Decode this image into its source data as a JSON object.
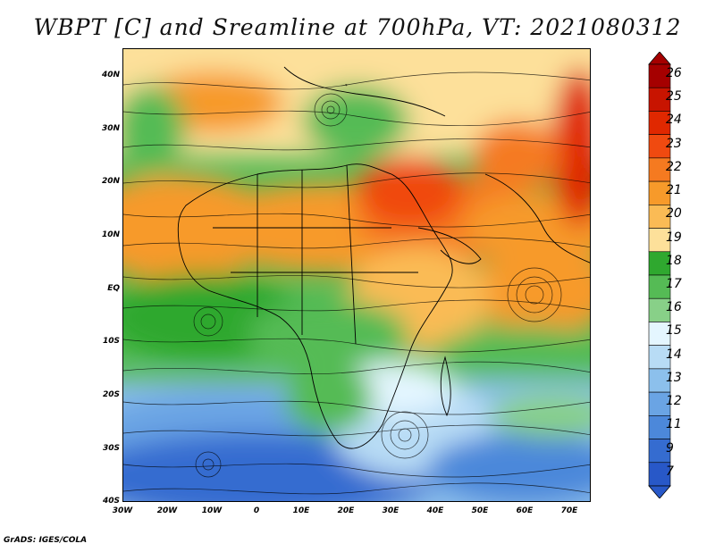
{
  "title": "WBPT [C] and Sreamline at 700hPa, VT: 2021080312",
  "credit": "GrADS: IGES/COLA",
  "map": {
    "lat_labels": [
      "40N",
      "30N",
      "20N",
      "10N",
      "EQ",
      "10S",
      "20S",
      "30S",
      "40S"
    ],
    "lon_labels": [
      "30W",
      "20W",
      "10W",
      "0",
      "10E",
      "20E",
      "30E",
      "40E",
      "50E",
      "60E",
      "70E"
    ],
    "lat_range": [
      -40,
      45
    ],
    "lon_range": [
      -30,
      75
    ]
  },
  "colorbar": {
    "levels": [
      "26",
      "25",
      "24",
      "23",
      "22",
      "21",
      "20",
      "19",
      "18",
      "17",
      "16",
      "15",
      "14",
      "13",
      "12",
      "11",
      "9",
      "7"
    ],
    "colors": [
      "#a50000",
      "#c81400",
      "#e02800",
      "#f04a10",
      "#f57a20",
      "#f79a2a",
      "#fabb55",
      "#fde09a",
      "#2fa82f",
      "#55bb55",
      "#88d088",
      "#e4f6ff",
      "#b8dcf5",
      "#8cc0ec",
      "#6aa4e4",
      "#4c88da",
      "#356cd0",
      "#2858c8"
    ]
  }
}
